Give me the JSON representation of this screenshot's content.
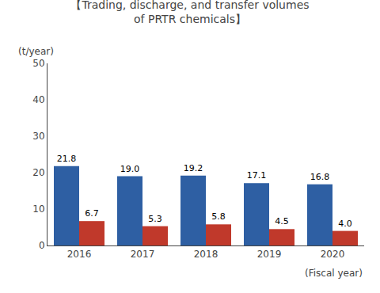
{
  "chart_data": {
    "type": "bar",
    "title": "【Trading, discharge, and transfer volumes\nof PRTR chemicals】",
    "xlabel": "(Fiscal year)",
    "ylabel": "(t/year)",
    "categories": [
      "2016",
      "2017",
      "2018",
      "2019",
      "2020"
    ],
    "series": [
      {
        "color": "#2e5fa3",
        "values": [
          21.8,
          19.0,
          19.2,
          17.1,
          16.8
        ],
        "value_labels": [
          "21.8",
          "19.0",
          "19.2",
          "17.1",
          "16.8"
        ]
      },
      {
        "color": "#c0392b",
        "values": [
          6.7,
          5.3,
          5.8,
          4.5,
          4.0
        ],
        "value_labels": [
          "6.7",
          "5.3",
          "5.8",
          "4.5",
          "4.0"
        ]
      }
    ],
    "ylim": [
      0,
      50
    ],
    "yticks": [
      0,
      10,
      20,
      30,
      40,
      50
    ],
    "grid": false,
    "data_labels": true
  }
}
